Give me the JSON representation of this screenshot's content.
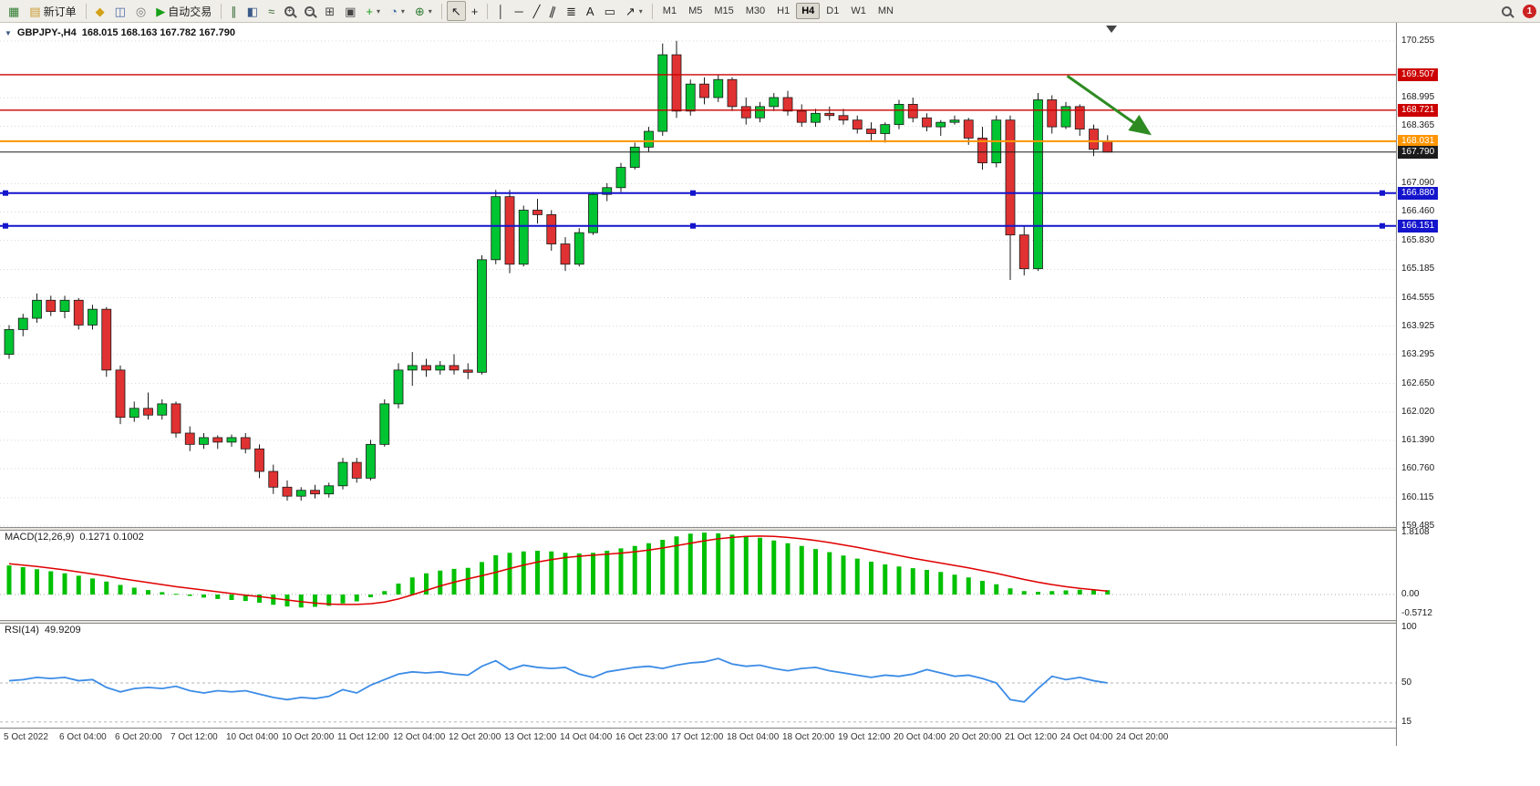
{
  "toolbar": {
    "items": [
      {
        "t": "icon",
        "name": "new-chart-icon",
        "glyph": "▦",
        "color": "#2e7d32"
      },
      {
        "t": "button",
        "name": "new-order-button",
        "glyph": "▤",
        "color": "#c99a2e",
        "label": "新订单"
      },
      {
        "t": "sep"
      },
      {
        "t": "icon",
        "name": "market-watch-icon",
        "glyph": "◆",
        "color": "#d4a017"
      },
      {
        "t": "icon",
        "name": "navigator-icon",
        "glyph": "◫",
        "color": "#4a69a5"
      },
      {
        "t": "icon",
        "name": "terminal-icon",
        "glyph": "◎",
        "color": "#777777"
      },
      {
        "t": "button",
        "name": "autotrading-button",
        "glyph": "▶",
        "color": "#18a018",
        "label": "自动交易"
      },
      {
        "t": "sep"
      },
      {
        "t": "icon",
        "name": "bar-chart-icon",
        "glyph": "∥",
        "color": "#3b6e3b"
      },
      {
        "t": "icon",
        "name": "candlestick-chart-icon",
        "glyph": "◧",
        "color": "#3b5b8a"
      },
      {
        "t": "icon",
        "name": "line-chart-icon",
        "glyph": "≈",
        "color": "#3b6e3b"
      },
      {
        "t": "icon",
        "name": "zoom-in-icon",
        "mag": "+",
        "color": "#444444"
      },
      {
        "t": "icon",
        "name": "zoom-out-icon",
        "mag": "−",
        "color": "#444444"
      },
      {
        "t": "icon",
        "name": "tile-windows-icon",
        "glyph": "⊞",
        "color": "#444444"
      },
      {
        "t": "icon",
        "name": "arrange-windows-icon",
        "glyph": "▣",
        "color": "#444444"
      },
      {
        "t": "icon",
        "name": "new-chart-plus-icon",
        "glyph": "+",
        "color": "#18a018",
        "dropdown": true
      },
      {
        "t": "icon",
        "name": "profiles-icon",
        "glyph": "◔",
        "color": "#3a6ea5",
        "dropdown": true
      },
      {
        "t": "icon",
        "name": "indicators-icon",
        "glyph": "⊕",
        "color": "#2e7d32",
        "dropdown": true
      },
      {
        "t": "sep"
      },
      {
        "t": "icon",
        "name": "cursor-icon",
        "glyph": "↖",
        "color": "#222222",
        "active": true
      },
      {
        "t": "icon",
        "name": "crosshair-icon",
        "glyph": "+",
        "color": "#222222"
      },
      {
        "t": "sep"
      },
      {
        "t": "icon",
        "name": "vertical-line-icon",
        "glyph": "│",
        "color": "#222222"
      },
      {
        "t": "icon",
        "name": "horizontal-line-icon",
        "glyph": "─",
        "color": "#222222"
      },
      {
        "t": "icon",
        "name": "trendline-icon",
        "glyph": "╱",
        "color": "#222222"
      },
      {
        "t": "icon",
        "name": "equidistant-channel-icon",
        "glyph": "∥",
        "color": "#222222",
        "tilt": true
      },
      {
        "t": "icon",
        "name": "fibonacci-icon",
        "glyph": "≣",
        "color": "#222222"
      },
      {
        "t": "icon",
        "name": "text-icon",
        "glyph": "A",
        "color": "#222222"
      },
      {
        "t": "icon",
        "name": "label-icon",
        "glyph": "▭",
        "color": "#222222"
      },
      {
        "t": "icon",
        "name": "arrows-icon",
        "glyph": "↗",
        "color": "#222222",
        "dropdown": true
      },
      {
        "t": "sep"
      },
      {
        "t": "tf",
        "label": "M1"
      },
      {
        "t": "tf",
        "label": "M5"
      },
      {
        "t": "tf",
        "label": "M15"
      },
      {
        "t": "tf",
        "label": "M30"
      },
      {
        "t": "tf",
        "label": "H1"
      },
      {
        "t": "tf",
        "label": "H4",
        "active": true
      },
      {
        "t": "tf",
        "label": "D1"
      },
      {
        "t": "tf",
        "label": "W1"
      },
      {
        "t": "tf",
        "label": "MN"
      },
      {
        "t": "spacer"
      },
      {
        "t": "icon",
        "name": "search-icon",
        "mag": "",
        "color": "#444444"
      },
      {
        "t": "badge",
        "name": "notification-badge",
        "label": "1",
        "color": "#cc2222"
      }
    ]
  },
  "chart": {
    "collapse_icon": "▼",
    "title": "GBPJPY-,H4",
    "ohlc_text": "168.015 168.163 167.782 167.790"
  },
  "chart_data": [
    {
      "type": "candlestick",
      "symbol": "GBPJPY-",
      "timeframe": "H4",
      "open": 168.015,
      "high": 168.163,
      "low": 167.782,
      "close": 167.79,
      "ylim": [
        159.485,
        170.255
      ],
      "y_ticks": [
        170.255,
        168.995,
        168.365,
        167.09,
        166.46,
        165.83,
        165.185,
        164.555,
        163.925,
        163.295,
        162.65,
        162.02,
        161.39,
        160.76,
        160.115,
        159.485
      ],
      "x_labels": [
        "5 Oct 2022",
        "6 Oct 04:00",
        "6 Oct 20:00",
        "7 Oct 12:00",
        "10 Oct 04:00",
        "10 Oct 20:00",
        "11 Oct 12:00",
        "12 Oct 04:00",
        "12 Oct 20:00",
        "13 Oct 12:00",
        "14 Oct 04:00",
        "16 Oct 23:00",
        "17 Oct 12:00",
        "18 Oct 04:00",
        "18 Oct 20:00",
        "19 Oct 12:00",
        "20 Oct 04:00",
        "20 Oct 20:00",
        "21 Oct 12:00",
        "24 Oct 04:00",
        "24 Oct 20:00"
      ],
      "candles_per_label": 4,
      "ohlc_series": [
        [
          163.3,
          163.95,
          163.2,
          163.85
        ],
        [
          163.85,
          164.2,
          163.7,
          164.1
        ],
        [
          164.1,
          164.65,
          164.0,
          164.5
        ],
        [
          164.5,
          164.6,
          164.15,
          164.25
        ],
        [
          164.25,
          164.6,
          164.1,
          164.5
        ],
        [
          164.5,
          164.55,
          163.85,
          163.95
        ],
        [
          163.95,
          164.4,
          163.85,
          164.3
        ],
        [
          164.3,
          164.35,
          162.8,
          162.95
        ],
        [
          162.95,
          163.05,
          161.75,
          161.9
        ],
        [
          161.9,
          162.25,
          161.8,
          162.1
        ],
        [
          162.1,
          162.45,
          161.85,
          161.95
        ],
        [
          161.95,
          162.3,
          161.85,
          162.2
        ],
        [
          162.2,
          162.25,
          161.45,
          161.55
        ],
        [
          161.55,
          161.7,
          161.15,
          161.3
        ],
        [
          161.3,
          161.55,
          161.2,
          161.45
        ],
        [
          161.45,
          161.5,
          161.2,
          161.35
        ],
        [
          161.35,
          161.52,
          161.25,
          161.45
        ],
        [
          161.45,
          161.55,
          161.1,
          161.2
        ],
        [
          161.2,
          161.3,
          160.55,
          160.7
        ],
        [
          160.7,
          160.85,
          160.2,
          160.35
        ],
        [
          160.35,
          160.5,
          160.05,
          160.15
        ],
        [
          160.15,
          160.35,
          160.05,
          160.28
        ],
        [
          160.28,
          160.4,
          160.1,
          160.2
        ],
        [
          160.2,
          160.45,
          160.12,
          160.38
        ],
        [
          160.38,
          161.0,
          160.3,
          160.9
        ],
        [
          160.9,
          161.0,
          160.45,
          160.55
        ],
        [
          160.55,
          161.4,
          160.5,
          161.3
        ],
        [
          161.3,
          162.3,
          161.25,
          162.2
        ],
        [
          162.2,
          163.1,
          162.1,
          162.95
        ],
        [
          162.95,
          163.35,
          162.6,
          163.05
        ],
        [
          163.05,
          163.2,
          162.8,
          162.95
        ],
        [
          162.95,
          163.15,
          162.85,
          163.05
        ],
        [
          163.05,
          163.3,
          162.85,
          162.95
        ],
        [
          162.95,
          163.1,
          162.75,
          162.9
        ],
        [
          162.9,
          165.5,
          162.85,
          165.4
        ],
        [
          165.4,
          166.95,
          165.3,
          166.8
        ],
        [
          166.8,
          166.95,
          165.1,
          165.3
        ],
        [
          165.3,
          166.6,
          165.25,
          166.5
        ],
        [
          166.5,
          166.75,
          166.2,
          166.4
        ],
        [
          166.4,
          166.5,
          165.6,
          165.75
        ],
        [
          165.75,
          165.9,
          165.15,
          165.3
        ],
        [
          165.3,
          166.1,
          165.25,
          166.0
        ],
        [
          166.0,
          166.9,
          165.95,
          166.85
        ],
        [
          166.85,
          167.1,
          166.7,
          167.0
        ],
        [
          167.0,
          167.55,
          166.9,
          167.45
        ],
        [
          167.45,
          168.0,
          167.4,
          167.9
        ],
        [
          167.9,
          168.35,
          167.8,
          168.25
        ],
        [
          168.25,
          170.2,
          168.15,
          169.95
        ],
        [
          169.95,
          170.26,
          168.55,
          168.7
        ],
        [
          168.7,
          169.4,
          168.6,
          169.3
        ],
        [
          169.3,
          169.45,
          168.85,
          169.0
        ],
        [
          169.0,
          169.5,
          168.9,
          169.4
        ],
        [
          169.4,
          169.45,
          168.7,
          168.8
        ],
        [
          168.8,
          169.0,
          168.4,
          168.55
        ],
        [
          168.55,
          168.9,
          168.45,
          168.8
        ],
        [
          168.8,
          169.1,
          168.7,
          169.0
        ],
        [
          169.0,
          169.15,
          168.6,
          168.7
        ],
        [
          168.7,
          168.85,
          168.35,
          168.45
        ],
        [
          168.45,
          168.75,
          168.35,
          168.65
        ],
        [
          168.65,
          168.8,
          168.5,
          168.6
        ],
        [
          168.6,
          168.75,
          168.4,
          168.5
        ],
        [
          168.5,
          168.6,
          168.2,
          168.3
        ],
        [
          168.3,
          168.45,
          168.05,
          168.2
        ],
        [
          168.2,
          168.45,
          168.0,
          168.4
        ],
        [
          168.4,
          168.95,
          168.3,
          168.85
        ],
        [
          168.85,
          169.0,
          168.45,
          168.55
        ],
        [
          168.55,
          168.65,
          168.25,
          168.35
        ],
        [
          168.35,
          168.5,
          168.15,
          168.45
        ],
        [
          168.45,
          168.6,
          168.4,
          168.5
        ],
        [
          168.5,
          168.55,
          167.95,
          168.1
        ],
        [
          168.1,
          168.35,
          167.4,
          167.55
        ],
        [
          167.55,
          168.6,
          167.45,
          168.5
        ],
        [
          168.5,
          168.6,
          164.95,
          165.95
        ],
        [
          165.95,
          166.15,
          165.05,
          165.2
        ],
        [
          165.2,
          169.1,
          165.15,
          168.95
        ],
        [
          168.95,
          169.05,
          168.2,
          168.35
        ],
        [
          168.35,
          168.9,
          168.3,
          168.8
        ],
        [
          168.8,
          168.85,
          168.15,
          168.3
        ],
        [
          168.3,
          168.4,
          167.7,
          167.85
        ],
        [
          168.015,
          168.163,
          167.782,
          167.79
        ]
      ],
      "hlines": [
        {
          "price": 169.507,
          "label": "169.507",
          "color": "#cc0000",
          "width": 1.4,
          "handles": false
        },
        {
          "price": 168.721,
          "label": "168.721",
          "color": "#cc0000",
          "width": 1.4,
          "handles": false
        },
        {
          "price": 168.031,
          "label": "168.031",
          "color": "#ff9500",
          "width": 2,
          "handles": false
        },
        {
          "price": 166.88,
          "label": "166.880",
          "color": "#1414cc",
          "width": 2,
          "handles": true
        },
        {
          "price": 166.151,
          "label": "166.151",
          "color": "#1414cc",
          "width": 2,
          "handles": true
        }
      ],
      "bid_line": {
        "price": 167.79,
        "label": "167.790",
        "color": "#1b1b1b"
      },
      "trend_arrow": {
        "from_index": 76.1,
        "from_price": 169.48,
        "to_index": 82.0,
        "to_price": 168.2,
        "color": "#2e8b22"
      },
      "colors": {
        "bull": "#00c432",
        "bear": "#e03232",
        "outline": "#1a1a1a",
        "grid": "#d8d8d8"
      }
    },
    {
      "type": "bar",
      "name": "MACD(12,26,9)",
      "values_text": "0.1271 0.1002",
      "current_macd": 0.1271,
      "current_signal": 0.1002,
      "ylim": [
        -0.5712,
        1.8108
      ],
      "y_ticks": [
        {
          "v": 1.8108,
          "label": "1.8108"
        },
        {
          "v": 0,
          "label": "0.00"
        },
        {
          "v": -0.5712,
          "label": "-0.5712"
        }
      ],
      "histogram": [
        0.85,
        0.8,
        0.74,
        0.68,
        0.62,
        0.55,
        0.47,
        0.38,
        0.28,
        0.2,
        0.13,
        0.07,
        0.02,
        -0.04,
        -0.09,
        -0.13,
        -0.16,
        -0.19,
        -0.24,
        -0.3,
        -0.35,
        -0.38,
        -0.36,
        -0.33,
        -0.26,
        -0.2,
        -0.08,
        0.1,
        0.32,
        0.5,
        0.62,
        0.7,
        0.75,
        0.78,
        0.95,
        1.15,
        1.22,
        1.26,
        1.28,
        1.26,
        1.22,
        1.2,
        1.22,
        1.28,
        1.35,
        1.42,
        1.5,
        1.6,
        1.7,
        1.78,
        1.81,
        1.79,
        1.75,
        1.71,
        1.66,
        1.58,
        1.5,
        1.42,
        1.33,
        1.24,
        1.14,
        1.05,
        0.96,
        0.88,
        0.82,
        0.77,
        0.72,
        0.66,
        0.58,
        0.5,
        0.4,
        0.3,
        0.18,
        0.1,
        0.08,
        0.1,
        0.12,
        0.14,
        0.13,
        0.1271
      ],
      "signal": [
        0.9,
        0.86,
        0.82,
        0.77,
        0.72,
        0.66,
        0.6,
        0.54,
        0.47,
        0.41,
        0.35,
        0.29,
        0.23,
        0.18,
        0.13,
        0.08,
        0.03,
        -0.02,
        -0.06,
        -0.11,
        -0.16,
        -0.21,
        -0.25,
        -0.28,
        -0.29,
        -0.29,
        -0.27,
        -0.22,
        -0.13,
        -0.01,
        0.12,
        0.25,
        0.36,
        0.46,
        0.55,
        0.65,
        0.76,
        0.86,
        0.95,
        1.02,
        1.08,
        1.12,
        1.15,
        1.18,
        1.21,
        1.25,
        1.3,
        1.36,
        1.43,
        1.5,
        1.57,
        1.63,
        1.67,
        1.7,
        1.71,
        1.7,
        1.67,
        1.63,
        1.58,
        1.52,
        1.45,
        1.38,
        1.3,
        1.22,
        1.14,
        1.06,
        0.99,
        0.92,
        0.85,
        0.78,
        0.7,
        0.62,
        0.53,
        0.44,
        0.36,
        0.29,
        0.23,
        0.18,
        0.14,
        0.1002
      ],
      "colors": {
        "histogram": "#00c000",
        "signal": "#e00000",
        "zero_line": "#aaaaaa"
      }
    },
    {
      "type": "line",
      "name": "RSI(14)",
      "value_text": "49.9209",
      "current": 49.9209,
      "ylim": [
        0,
        100
      ],
      "levels": [
        {
          "v": 100,
          "label": "100"
        },
        {
          "v": 50,
          "label": "50"
        },
        {
          "v": 15,
          "label": "15"
        }
      ],
      "values": [
        52,
        53,
        55,
        54,
        55,
        52,
        53,
        46,
        42,
        45,
        46,
        45,
        47,
        43,
        41,
        43,
        42,
        43,
        40,
        37,
        35,
        37,
        36,
        38,
        44,
        41,
        48,
        53,
        58,
        60,
        59,
        60,
        58,
        57,
        65,
        70,
        62,
        66,
        64,
        63,
        64,
        58,
        55,
        60,
        62,
        64,
        65,
        63,
        66,
        68,
        69,
        72,
        67,
        65,
        66,
        63,
        61,
        63,
        64,
        61,
        59,
        57,
        55,
        57,
        56,
        58,
        62,
        59,
        56,
        57,
        54,
        50,
        35,
        33,
        45,
        56,
        53,
        55,
        52,
        50
      ],
      "colors": {
        "line": "#3c8ce6",
        "level_line": "#b5b5b5"
      }
    }
  ]
}
